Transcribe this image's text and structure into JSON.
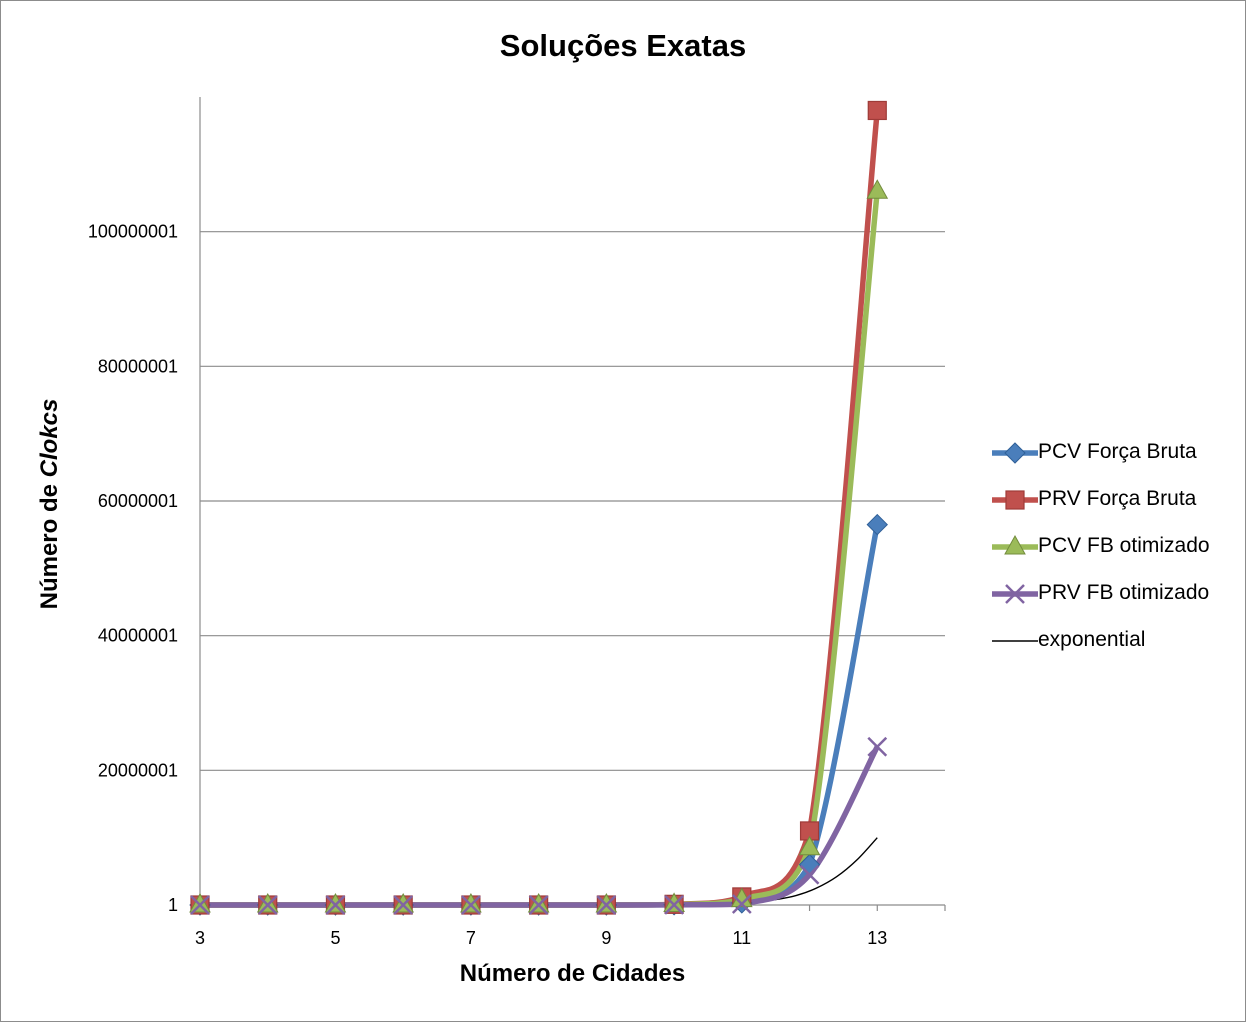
{
  "chart_data": {
    "type": "line",
    "title": "Soluções Exatas",
    "xlabel": "Número de Cidades",
    "ylabel_prefix": "Número de ",
    "ylabel_emphasis": "Clokcs",
    "x": [
      3,
      4,
      5,
      6,
      7,
      8,
      9,
      10,
      11,
      12,
      13
    ],
    "x_tick_labels": [
      "3",
      "5",
      "7",
      "9",
      "11",
      "13"
    ],
    "x_tick_values": [
      3,
      5,
      7,
      9,
      11,
      13
    ],
    "xlim": [
      3,
      14
    ],
    "y_tick_labels": [
      "1",
      "20000001",
      "40000001",
      "60000001",
      "80000001",
      "100000001"
    ],
    "y_tick_values": [
      1,
      20000001,
      40000001,
      60000001,
      80000001,
      100000001
    ],
    "ylim": [
      1,
      120000001
    ],
    "grid": "horizontal",
    "legend_position": "right",
    "series": [
      {
        "name": "PCV Força Bruta",
        "color": "#4a7ebb",
        "marker": "diamond",
        "values": [
          1,
          1,
          1,
          1,
          1,
          1,
          1,
          30000,
          300000,
          6000000,
          56500000
        ]
      },
      {
        "name": "PRV Força Bruta",
        "color": "#c0504d",
        "marker": "square",
        "values": [
          1,
          1,
          1,
          1,
          1,
          1,
          1,
          100000,
          1200000,
          11000000,
          118000000
        ]
      },
      {
        "name": "PCV FB otimizado",
        "color": "#9bbb59",
        "marker": "triangle",
        "values": [
          1,
          1,
          1,
          1,
          1,
          1,
          1,
          80000,
          800000,
          8500000,
          106000000
        ]
      },
      {
        "name": "PRV FB otimizado",
        "color": "#8064a2",
        "marker": "x",
        "values": [
          1,
          1,
          1,
          1,
          1,
          1,
          1,
          20000,
          150000,
          4500000,
          23500000
        ]
      }
    ],
    "trendline": {
      "name": "exponential",
      "color": "#000000",
      "x": [
        10.3,
        10.6,
        10.9,
        11.2,
        11.5,
        11.8,
        12.1,
        12.4,
        12.7,
        13.0
      ],
      "values": [
        100000,
        150000,
        250000,
        450000,
        800000,
        1400000,
        2500000,
        4200000,
        6700000,
        10000000
      ]
    }
  }
}
